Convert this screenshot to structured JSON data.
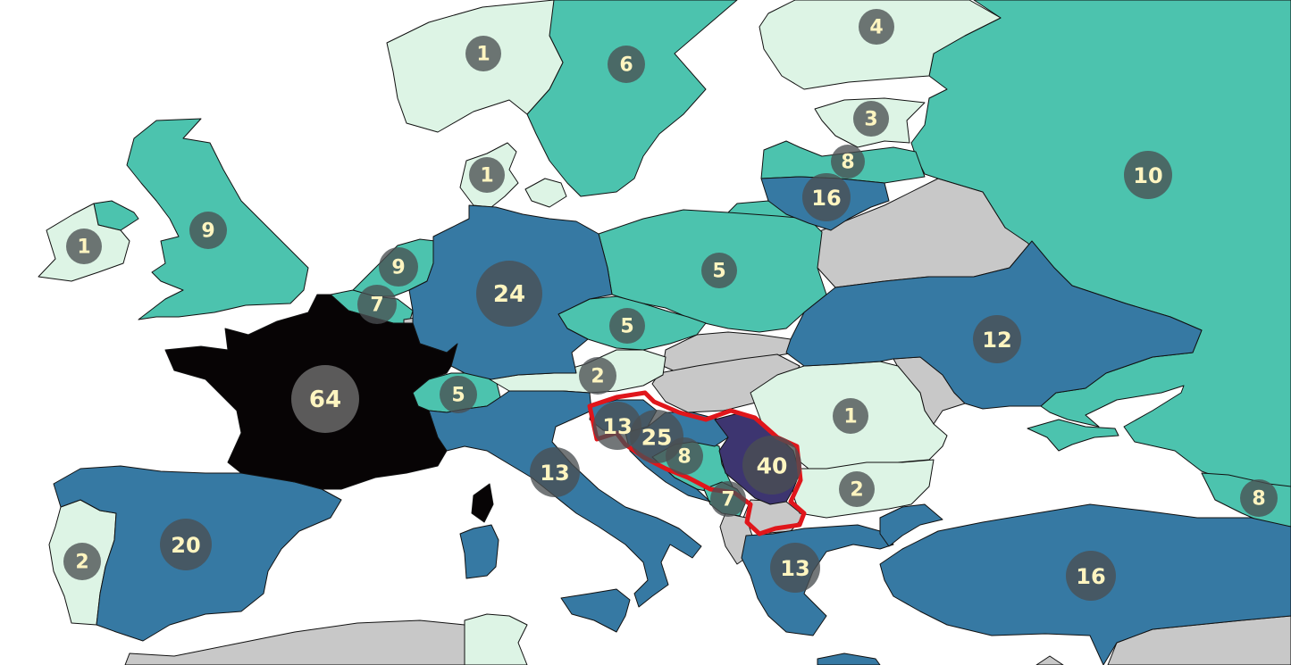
{
  "colors": {
    "background": "#ffffff",
    "tier1": "#ddf4e5",
    "tier2": "#4cc3ae",
    "tier3": "#3679a3",
    "tier4": "#3d3570",
    "tier5": "#070405",
    "nodata": "#c8c8c8",
    "highlight": "#e0161b",
    "badge": "#4a4f52",
    "badge_text": "#fff5c0"
  },
  "regions": [
    {
      "id": "ireland",
      "value": "1",
      "tier": "tier1"
    },
    {
      "id": "northern-ireland",
      "value": "",
      "tier": "tier2"
    },
    {
      "id": "united-kingdom",
      "value": "9",
      "tier": "tier2"
    },
    {
      "id": "norway",
      "value": "1",
      "tier": "tier1"
    },
    {
      "id": "sweden",
      "value": "6",
      "tier": "tier2"
    },
    {
      "id": "finland",
      "value": "4",
      "tier": "tier1"
    },
    {
      "id": "denmark",
      "value": "1",
      "tier": "tier1"
    },
    {
      "id": "estonia",
      "value": "3",
      "tier": "tier1"
    },
    {
      "id": "latvia",
      "value": "8",
      "tier": "tier2"
    },
    {
      "id": "lithuania",
      "value": "16",
      "tier": "tier3"
    },
    {
      "id": "russia",
      "value": "10",
      "tier": "tier2"
    },
    {
      "id": "netherlands",
      "value": "9",
      "tier": "tier2"
    },
    {
      "id": "belgium",
      "value": "7",
      "tier": "tier2"
    },
    {
      "id": "germany",
      "value": "24",
      "tier": "tier3"
    },
    {
      "id": "poland",
      "value": "5",
      "tier": "tier2"
    },
    {
      "id": "czechia",
      "value": "5",
      "tier": "tier2"
    },
    {
      "id": "austria",
      "value": "2",
      "tier": "tier1"
    },
    {
      "id": "switzerland",
      "value": "5",
      "tier": "tier2"
    },
    {
      "id": "france",
      "value": "64",
      "tier": "tier5"
    },
    {
      "id": "ukraine",
      "value": "12",
      "tier": "tier3"
    },
    {
      "id": "romania",
      "value": "1",
      "tier": "tier1"
    },
    {
      "id": "bulgaria",
      "value": "2",
      "tier": "tier1"
    },
    {
      "id": "italy",
      "value": "13",
      "tier": "tier3"
    },
    {
      "id": "slovenia",
      "value": "13",
      "tier": "tier3"
    },
    {
      "id": "croatia",
      "value": "25",
      "tier": "tier3"
    },
    {
      "id": "bosnia",
      "value": "8",
      "tier": "tier2"
    },
    {
      "id": "serbia",
      "value": "40",
      "tier": "tier4"
    },
    {
      "id": "montenegro",
      "value": "7",
      "tier": "tier2"
    },
    {
      "id": "greece",
      "value": "13",
      "tier": "tier3"
    },
    {
      "id": "turkey",
      "value": "16",
      "tier": "tier3"
    },
    {
      "id": "georgia",
      "value": "8",
      "tier": "tier2"
    },
    {
      "id": "spain",
      "value": "20",
      "tier": "tier3"
    },
    {
      "id": "portugal",
      "value": "2",
      "tier": "tier1"
    }
  ]
}
